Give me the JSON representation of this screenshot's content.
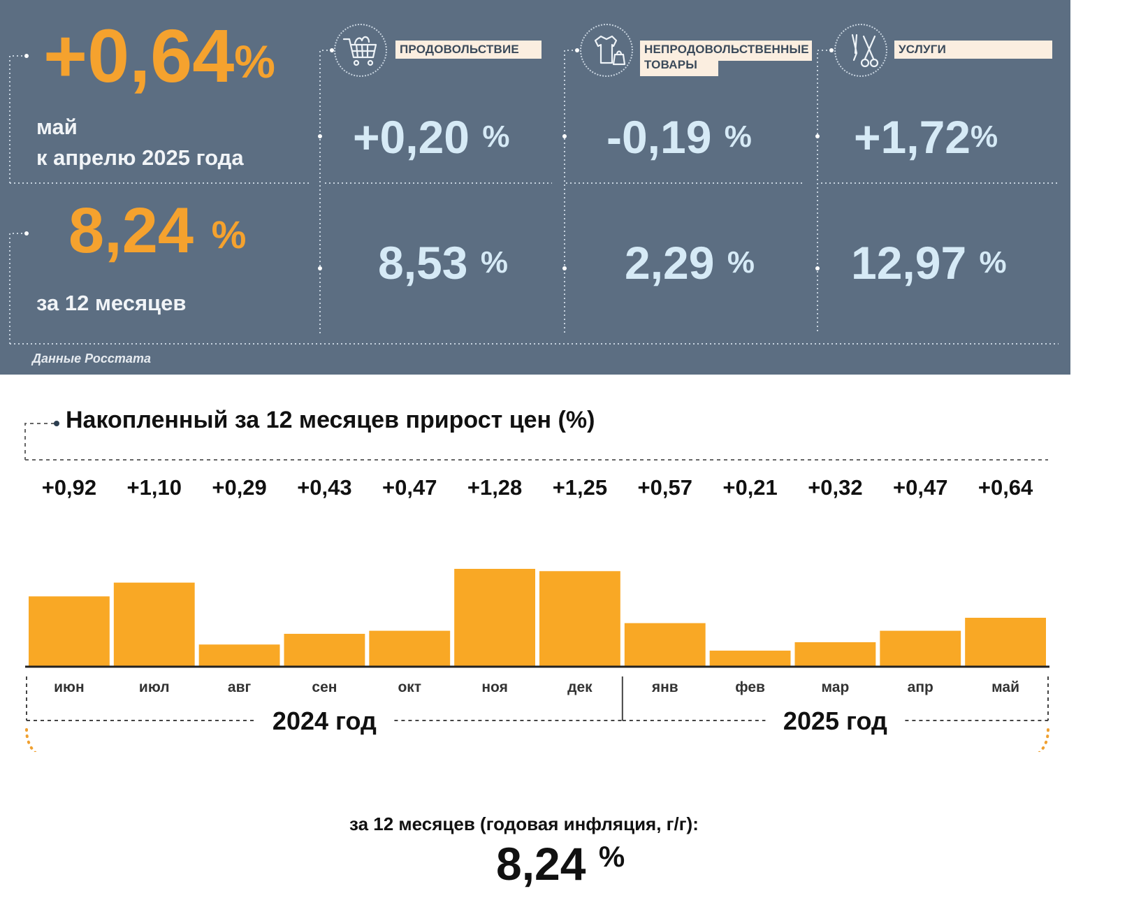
{
  "colors": {
    "panel_bg": "#5c6e82",
    "accent_orange": "#f5a22e",
    "light_blue": "#d6eaf6",
    "category_box": "#fbeee0",
    "bar": "#f9a825"
  },
  "summary": {
    "monthly": {
      "value": "+0,64",
      "unit": "%",
      "line1": "май",
      "line2": "к апрелю 2025 года"
    },
    "annual": {
      "value": "8,24",
      "unit": "%",
      "label": "за 12 месяцев"
    }
  },
  "categories": [
    {
      "name": "ПРОДОВОЛЬСТВИЕ",
      "icon": "shopping-cart-icon",
      "monthly": "+0,20",
      "annual": "8,53",
      "unit": "%"
    },
    {
      "name_line1": "НЕПРОДОВОЛЬСТВЕННЫЕ",
      "name_line2": "ТОВАРЫ",
      "icon": "clothing-icon",
      "monthly": "-0,19",
      "annual": "2,29",
      "unit": "%"
    },
    {
      "name": "УСЛУГИ",
      "icon": "scissors-icon",
      "monthly": "+1,72",
      "annual": "12,97",
      "unit": "%"
    }
  ],
  "source": "Данные Росстата",
  "chart_data": {
    "type": "bar",
    "title": "Накопленный за 12 месяцев прирост цен (%)",
    "categories": [
      "июн",
      "июл",
      "авг",
      "сен",
      "окт",
      "ноя",
      "дек",
      "янв",
      "фев",
      "мар",
      "апр",
      "май"
    ],
    "values": [
      0.92,
      1.1,
      0.29,
      0.43,
      0.47,
      1.28,
      1.25,
      0.57,
      0.21,
      0.32,
      0.47,
      0.64
    ],
    "value_labels": [
      "+0,92",
      "+1,10",
      "+0,29",
      "+0,43",
      "+0,47",
      "+1,28",
      "+1,25",
      "+0,57",
      "+0,21",
      "+0,32",
      "+0,47",
      "+0,64"
    ],
    "groups": [
      {
        "label": "2024 год",
        "count": 7
      },
      {
        "label": "2025 год",
        "count": 5
      }
    ],
    "ylim": [
      0,
      1.28
    ],
    "grid": false,
    "legend": "none"
  },
  "annual": {
    "caption": "за 12 месяцев (годовая инфляция, г/г):",
    "value": "8,24",
    "unit": "%"
  }
}
